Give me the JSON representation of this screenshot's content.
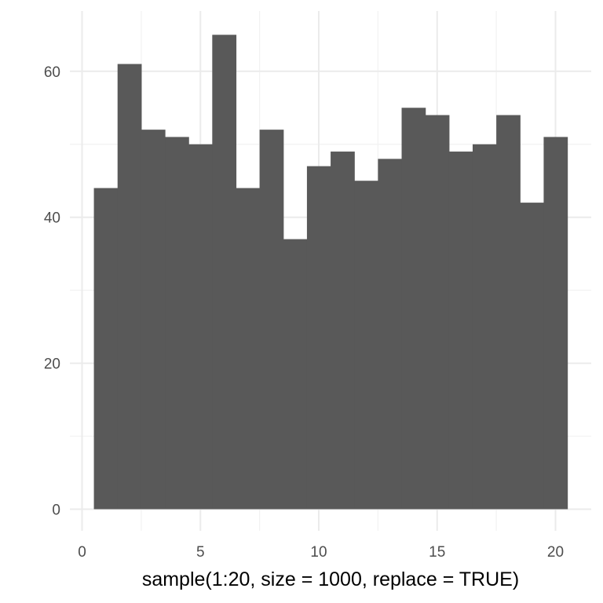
{
  "chart_data": {
    "type": "bar",
    "subtype": "histogram",
    "title": "",
    "xlabel": "sample(1:20, size = 1000, replace = TRUE)",
    "ylabel": "",
    "categories": [
      1,
      2,
      3,
      4,
      5,
      6,
      7,
      8,
      9,
      10,
      11,
      12,
      13,
      14,
      15,
      16,
      17,
      18,
      19,
      20
    ],
    "values": [
      44,
      61,
      52,
      51,
      50,
      65,
      44,
      52,
      37,
      47,
      49,
      45,
      48,
      55,
      54,
      49,
      50,
      54,
      42,
      51
    ],
    "xlim": [
      0,
      21
    ],
    "ylim": [
      0,
      68
    ],
    "x_ticks": [
      0,
      5,
      10,
      15,
      20
    ],
    "y_ticks": [
      0,
      20,
      40,
      60
    ],
    "grid": true,
    "legend": "none",
    "bar_color": "#595959"
  }
}
